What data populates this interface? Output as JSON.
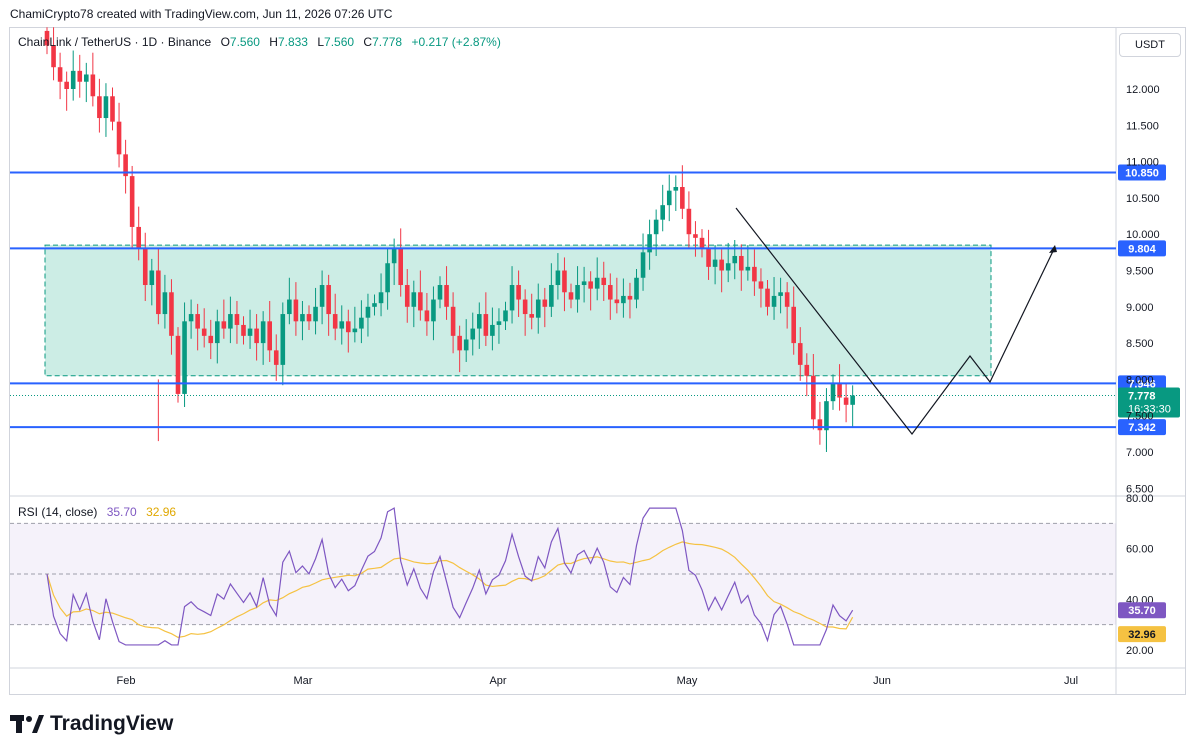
{
  "header": {
    "credit": "ChamiCrypto78 created with TradingView.com, Jun 11, 2026 07:26 UTC"
  },
  "legend": {
    "symbol": "ChainLink / TetherUS · 1D · Binance",
    "o_label": "O",
    "o": "7.560",
    "h_label": "H",
    "h": "7.833",
    "l_label": "L",
    "l": "7.560",
    "c_label": "C",
    "c": "7.778",
    "change": "+0.217 (+2.87%)"
  },
  "currency_button": "USDT",
  "rsi_legend": {
    "label": "RSI (14, close)",
    "rsi": "35.70",
    "ma": "32.96"
  },
  "logo": "TradingView",
  "colors": {
    "up": "#089981",
    "down": "#f23645",
    "level": "#2962ff",
    "zone": "#bfe9df",
    "rsi_line": "#7e57c2",
    "rsi_ma": "#f5c242"
  },
  "chart_data": [
    {
      "type": "candlestick",
      "title": "ChainLink / TetherUS · 1D · Binance",
      "ylim": [
        6.5,
        12.0
      ],
      "y_ticks": [
        "6.500",
        "7.000",
        "7.500",
        "8.000",
        "8.500",
        "9.000",
        "9.500",
        "10.000",
        "10.500",
        "11.000",
        "11.500",
        "12.000"
      ],
      "x_ticks": [
        "Feb",
        "Mar",
        "Apr",
        "May",
        "Jun",
        "Jul"
      ],
      "levels": [
        {
          "value": 10.85,
          "label": "10.850"
        },
        {
          "value": 9.804,
          "label": "9.804"
        },
        {
          "value": 7.946,
          "label": "7.946"
        },
        {
          "value": 7.342,
          "label": "7.342"
        }
      ],
      "last_price": {
        "value": 7.778,
        "label": "7.778",
        "countdown": "16:33:30"
      },
      "range_zone": {
        "top": 9.85,
        "bottom": 8.05
      },
      "closes": [
        12.6,
        12.3,
        12.1,
        12.0,
        12.25,
        12.1,
        12.2,
        11.9,
        11.6,
        11.9,
        11.55,
        11.1,
        10.8,
        10.1,
        9.8,
        9.3,
        9.5,
        8.9,
        9.2,
        8.6,
        7.8,
        8.8,
        8.9,
        8.7,
        8.6,
        8.5,
        8.8,
        8.7,
        8.9,
        8.75,
        8.6,
        8.7,
        8.5,
        8.8,
        8.4,
        8.2,
        8.9,
        9.1,
        8.8,
        8.9,
        8.8,
        9.0,
        9.3,
        8.9,
        8.7,
        8.8,
        8.65,
        8.7,
        8.85,
        9.0,
        9.05,
        9.2,
        9.6,
        9.8,
        9.3,
        9.0,
        9.2,
        8.95,
        8.8,
        9.1,
        9.3,
        9.0,
        8.6,
        8.4,
        8.55,
        8.7,
        8.9,
        8.6,
        8.75,
        8.8,
        8.95,
        9.3,
        9.1,
        8.9,
        8.85,
        9.1,
        9.0,
        9.3,
        9.5,
        9.2,
        9.1,
        9.3,
        9.35,
        9.25,
        9.4,
        9.3,
        9.1,
        9.05,
        9.15,
        9.1,
        9.4,
        9.75,
        10.0,
        10.2,
        10.4,
        10.6,
        10.65,
        10.35,
        10.0,
        9.95,
        9.8,
        9.55,
        9.65,
        9.5,
        9.6,
        9.7,
        9.5,
        9.55,
        9.35,
        9.25,
        9.0,
        9.15,
        9.2,
        9.0,
        8.5,
        8.2,
        8.05,
        7.45,
        7.3,
        7.7,
        7.95,
        7.75,
        7.65,
        7.778
      ],
      "rsi": {
        "ylim": [
          20,
          80
        ],
        "y_ticks": [
          "20.00",
          "40.00",
          "60.00",
          "80.00"
        ],
        "bands": [
          30,
          50,
          70
        ],
        "value_label": "35.70",
        "ma_label": "32.96"
      }
    }
  ]
}
